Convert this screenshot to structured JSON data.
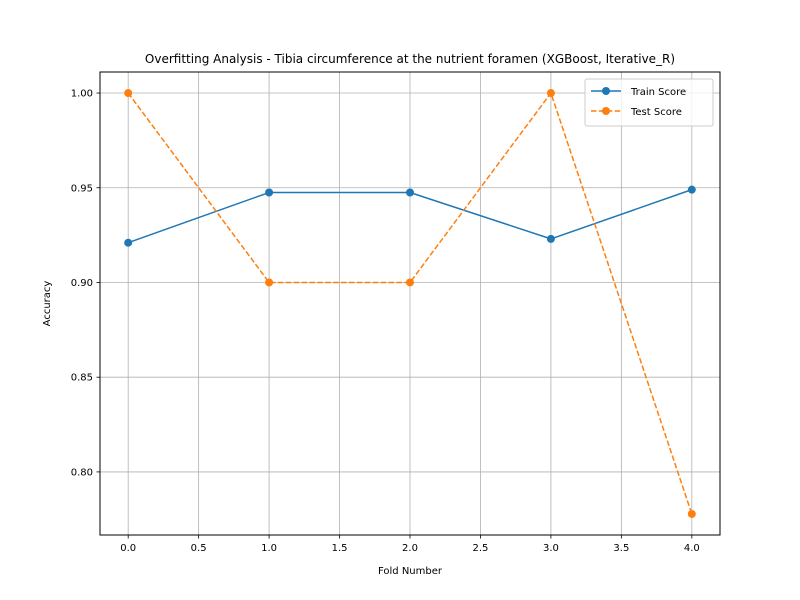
{
  "chart_data": {
    "type": "line",
    "title": "Overfitting Analysis - Tibia circumference at the nutrient foramen (XGBoost, Iterative_R)",
    "xlabel": "Fold Number",
    "ylabel": "Accuracy",
    "x": [
      0,
      1,
      2,
      3,
      4
    ],
    "xlim": [
      -0.2,
      4.2
    ],
    "ylim": [
      0.7667,
      1.0111
    ],
    "xticks": [
      0.0,
      0.5,
      1.0,
      1.5,
      2.0,
      2.5,
      3.0,
      3.5,
      4.0
    ],
    "xtick_labels": [
      "0.0",
      "0.5",
      "1.0",
      "1.5",
      "2.0",
      "2.5",
      "3.0",
      "3.5",
      "4.0"
    ],
    "yticks": [
      0.8,
      0.85,
      0.9,
      0.95,
      1.0
    ],
    "ytick_labels": [
      "0.80",
      "0.85",
      "0.90",
      "0.95",
      "1.00"
    ],
    "grid": true,
    "legend_position": "top-right",
    "series": [
      {
        "name": "Train Score",
        "values": [
          0.921,
          0.9475,
          0.9475,
          0.923,
          0.949
        ],
        "color": "#1f77b4",
        "linestyle": "solid",
        "marker": "circle"
      },
      {
        "name": "Test Score",
        "values": [
          1.0,
          0.9,
          0.9,
          1.0,
          0.7778
        ],
        "color": "#ff7f0e",
        "linestyle": "dashed",
        "marker": "circle"
      }
    ]
  }
}
